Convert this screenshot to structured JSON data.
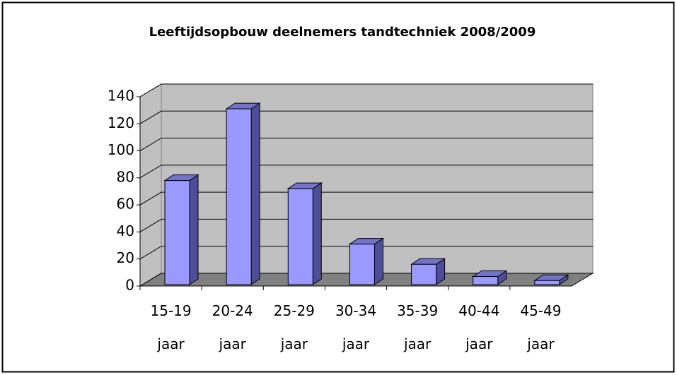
{
  "chart_data": {
    "type": "bar3d",
    "title": "Leeftijdsopbouw deelnemers tandtechniek 2008/2009",
    "categories": [
      "15-19 jaar",
      "20-24 jaar",
      "25-29 jaar",
      "30-34 jaar",
      "35-39 jaar",
      "40-44 jaar",
      "45-49 jaar"
    ],
    "values": [
      77,
      130,
      71,
      30,
      15,
      6,
      3
    ],
    "color": "#9999ff",
    "ylim": [
      0,
      140
    ],
    "yticks": [
      0,
      20,
      40,
      60,
      80,
      100,
      120,
      140
    ],
    "grid": true
  }
}
